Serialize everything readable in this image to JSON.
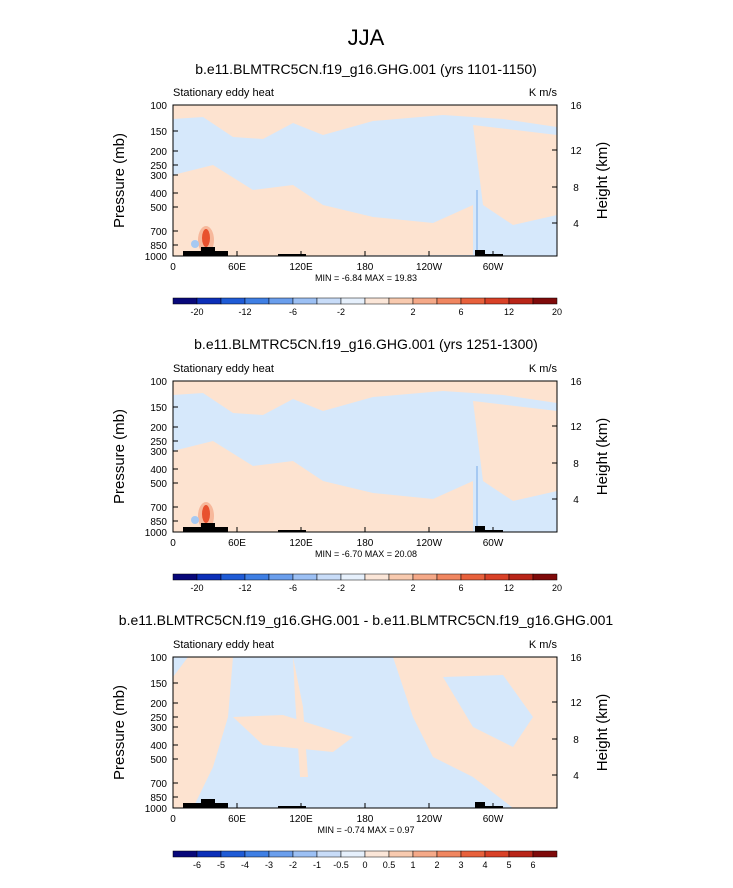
{
  "figure_title": "JJA",
  "colors": {
    "warm_light": "#fde3d0",
    "cool_light": "#d6e8fb",
    "warm_mid": "#f7b89b",
    "warm_strong": "#e8512e",
    "warm_dark": "#c7301a",
    "cool_mid": "#a6c9f2",
    "terrain": "#000000"
  },
  "chart_data": [
    {
      "type": "heatmap",
      "title": "b.e11.BLMTRC5CN.f19_g16.GHG.001 (yrs 1101-1150)",
      "left_label": "Stationary eddy heat",
      "right_label": "K m/s",
      "ylabel": "Pressure (mb)",
      "y2label": "Height (km)",
      "x_ticks": [
        "0",
        "60E",
        "120E",
        "180",
        "120W",
        "60W"
      ],
      "y_ticks": [
        "100",
        "150",
        "200",
        "250",
        "300",
        "400",
        "500",
        "700",
        "850",
        "1000"
      ],
      "y2_ticks": [
        "16",
        "12",
        "8",
        "4"
      ],
      "min_max": "MIN = -6.84  MAX = 19.83",
      "colorbar_labels": [
        "-20",
        "-12",
        "-6",
        "-2",
        "2",
        "6",
        "12",
        "20"
      ],
      "colorbar_colors": [
        "#08087a",
        "#0c2fb8",
        "#1f5bd6",
        "#3f7fe4",
        "#6a9eec",
        "#9cc0f4",
        "#c8dcf8",
        "#e6f0fc",
        "#fbe6d8",
        "#f8caaf",
        "#f5a988",
        "#f08660",
        "#e8613c",
        "#d94127",
        "#b92518",
        "#7f0a0a"
      ],
      "ylim_mb": [
        1000,
        100
      ],
      "xlim": [
        "0",
        "360"
      ],
      "max_location": {
        "lon": "35E",
        "p": "850"
      }
    },
    {
      "type": "heatmap",
      "title": "b.e11.BLMTRC5CN.f19_g16.GHG.001 (yrs 1251-1300)",
      "left_label": "Stationary eddy heat",
      "right_label": "K m/s",
      "ylabel": "Pressure (mb)",
      "y2label": "Height (km)",
      "x_ticks": [
        "0",
        "60E",
        "120E",
        "180",
        "120W",
        "60W"
      ],
      "y_ticks": [
        "100",
        "150",
        "200",
        "250",
        "300",
        "400",
        "500",
        "700",
        "850",
        "1000"
      ],
      "y2_ticks": [
        "16",
        "12",
        "8",
        "4"
      ],
      "min_max": "MIN = -6.70  MAX = 20.08",
      "colorbar_labels": [
        "-20",
        "-12",
        "-6",
        "-2",
        "2",
        "6",
        "12",
        "20"
      ],
      "colorbar_colors": [
        "#08087a",
        "#0c2fb8",
        "#1f5bd6",
        "#3f7fe4",
        "#6a9eec",
        "#9cc0f4",
        "#c8dcf8",
        "#e6f0fc",
        "#fbe6d8",
        "#f8caaf",
        "#f5a988",
        "#f08660",
        "#e8613c",
        "#d94127",
        "#b92518",
        "#7f0a0a"
      ],
      "ylim_mb": [
        1000,
        100
      ],
      "xlim": [
        "0",
        "360"
      ],
      "max_location": {
        "lon": "35E",
        "p": "850"
      }
    },
    {
      "type": "heatmap",
      "title": "b.e11.BLMTRC5CN.f19_g16.GHG.001 - b.e11.BLMTRC5CN.f19_g16.GHG.001",
      "left_label": "Stationary eddy heat",
      "right_label": "K m/s",
      "ylabel": "Pressure (mb)",
      "y2label": "Height (km)",
      "x_ticks": [
        "0",
        "60E",
        "120E",
        "180",
        "120W",
        "60W"
      ],
      "y_ticks": [
        "100",
        "150",
        "200",
        "250",
        "300",
        "400",
        "500",
        "700",
        "850",
        "1000"
      ],
      "y2_ticks": [
        "16",
        "12",
        "8",
        "4"
      ],
      "min_max": "MIN = -0.74  MAX =  0.97",
      "colorbar_labels": [
        "-6",
        "-5",
        "-4",
        "-3",
        "-2",
        "-1",
        "-0.5",
        "0",
        "0.5",
        "1",
        "2",
        "3",
        "4",
        "5",
        "6"
      ],
      "colorbar_colors": [
        "#08087a",
        "#0c2fb8",
        "#1f5bd6",
        "#3f7fe4",
        "#6a9eec",
        "#9cc0f4",
        "#c8dcf8",
        "#e6f0fc",
        "#fbe6d8",
        "#f8caaf",
        "#f5a988",
        "#f08660",
        "#e8613c",
        "#d94127",
        "#b92518",
        "#7f0a0a"
      ],
      "ylim_mb": [
        1000,
        100
      ],
      "xlim": [
        "0",
        "360"
      ]
    }
  ]
}
